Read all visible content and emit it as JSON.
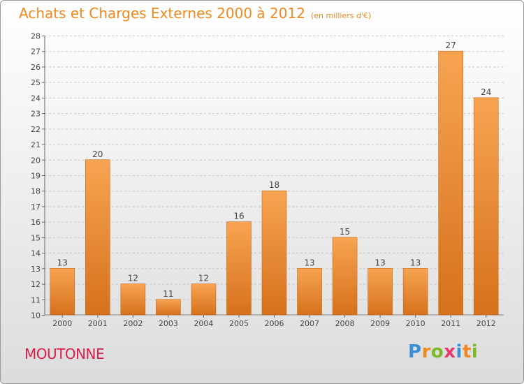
{
  "chart_data": {
    "type": "bar",
    "title": "Achats et Charges Externes 2000 à 2012",
    "subtitle": "(en milliers d'€)",
    "categories": [
      "2000",
      "2001",
      "2002",
      "2003",
      "2004",
      "2005",
      "2006",
      "2007",
      "2008",
      "2009",
      "2010",
      "2011",
      "2012"
    ],
    "values": [
      13,
      20,
      12,
      11,
      12,
      16,
      18,
      13,
      15,
      13,
      13,
      27,
      24
    ],
    "ylim": [
      10,
      28
    ],
    "yticks": [
      10,
      11,
      12,
      13,
      14,
      15,
      16,
      17,
      18,
      19,
      20,
      21,
      22,
      23,
      24,
      25,
      26,
      27,
      28
    ],
    "grid": true,
    "bar_color_top": "#f7a452",
    "bar_color_bottom": "#d6711c"
  },
  "footer": {
    "commune": "MOUTONNE",
    "logo": [
      "P",
      "r",
      "o",
      "x",
      "i",
      "t",
      "i"
    ],
    "logo_colors": [
      "#3a8fd6",
      "#f0891e",
      "#7ab929",
      "#e23b6d",
      "#3a8fd6",
      "#f0891e",
      "#7ab929"
    ]
  }
}
